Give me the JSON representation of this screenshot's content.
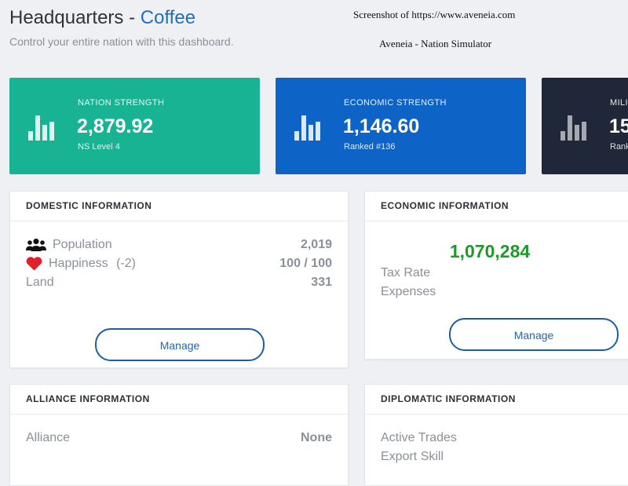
{
  "header": {
    "title": "Headquarters",
    "separator": "-",
    "nation": "Coffee",
    "subtitle": "Control your entire nation with this dashboard."
  },
  "watermark": {
    "line1": "Screenshot of https://www.aveneia.com",
    "line2": "Aveneia - Nation Simulator"
  },
  "stats": {
    "nation": {
      "label": "NATION STRENGTH",
      "value": "2,879.92",
      "sub": "NS Level 4",
      "color": "#17b393"
    },
    "economic": {
      "label": "ECONOMIC STRENGTH",
      "value": "1,146.60",
      "sub": "Ranked #136",
      "color": "#0d63c6"
    },
    "military": {
      "label": "MILI",
      "value": "15",
      "sub": "Rank",
      "color": "#1f2738"
    }
  },
  "domestic": {
    "title": "DOMESTIC INFORMATION",
    "population_label": "Population",
    "population_value": "2,019",
    "happiness_label": "Happiness",
    "happiness_mod": "(-2)",
    "happiness_value": "100 / 100",
    "land_label": "Land",
    "land_value": "331",
    "manage_label": "Manage"
  },
  "economic": {
    "title": "ECONOMIC INFORMATION",
    "big_value": "1,070,284",
    "tax_label": "Tax Rate",
    "expenses_label": "Expenses",
    "manage_label": "Manage"
  },
  "alliance": {
    "title": "ALLIANCE INFORMATION",
    "alliance_label": "Alliance",
    "alliance_value": "None"
  },
  "diplomatic": {
    "title": "DIPLOMATIC INFORMATION",
    "trades_label": "Active Trades",
    "export_label": "Export Skill"
  },
  "icons": {
    "stat_chart": "bar-chart-icon",
    "population": "users-icon",
    "happiness": "heart-icon"
  },
  "colors": {
    "accent": "#1d6fbd",
    "positive": "#1e9a2b",
    "happiness_heart": "#e0202a"
  }
}
